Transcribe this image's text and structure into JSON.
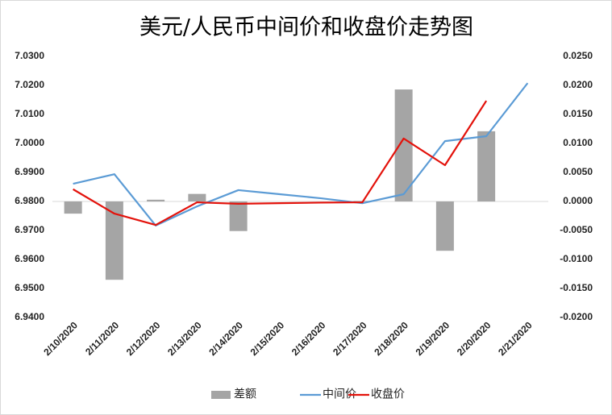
{
  "chart_data": {
    "type": "bar-line",
    "title": "美元/人民币中间价和收盘价走势图",
    "categories": [
      "2/10/2020",
      "2/11/2020",
      "2/12/2020",
      "2/13/2020",
      "2/14/2020",
      "2/15/2020",
      "2/16/2020",
      "2/17/2020",
      "2/18/2020",
      "2/19/2020",
      "2/20/2020",
      "2/21/2020"
    ],
    "series": [
      {
        "name": "差额",
        "type": "bar",
        "axis": "y2",
        "color": "#a5a5a5",
        "values": [
          -0.0021,
          -0.0135,
          0.0003,
          0.0013,
          -0.0051,
          null,
          null,
          0.0001,
          0.0193,
          -0.0085,
          0.0121,
          null
        ]
      },
      {
        "name": "中间价",
        "type": "line",
        "color": "#5b9bd5",
        "values": [
          6.9861,
          6.9894,
          6.9717,
          6.9783,
          6.9839,
          6.9825,
          6.9811,
          6.9794,
          6.9825,
          7.0008,
          7.0025,
          7.0208
        ]
      },
      {
        "name": "收盘价",
        "type": "line",
        "color": "#e3120b",
        "values": [
          6.9842,
          6.9758,
          6.9719,
          6.9797,
          6.9792,
          6.9794,
          6.9796,
          6.9797,
          7.0017,
          6.9925,
          7.0147,
          null
        ]
      }
    ],
    "ylim": [
      6.94,
      7.03
    ],
    "yticks": [
      {
        "value": 6.94,
        "label": "6.9400"
      },
      {
        "value": 6.95,
        "label": "6.9500"
      },
      {
        "value": 6.96,
        "label": "6.9600"
      },
      {
        "value": 6.97,
        "label": "6.9700"
      },
      {
        "value": 6.98,
        "label": "6.9800"
      },
      {
        "value": 6.99,
        "label": "6.9900"
      },
      {
        "value": 7.0,
        "label": "7.0000"
      },
      {
        "value": 7.01,
        "label": "7.0100"
      },
      {
        "value": 7.02,
        "label": "7.0200"
      },
      {
        "value": 7.03,
        "label": "7.0300"
      }
    ],
    "y2lim": [
      -0.02,
      0.025
    ],
    "y2ticks": [
      {
        "value": -0.02,
        "label": "-0.0200"
      },
      {
        "value": -0.015,
        "label": "-0.0150"
      },
      {
        "value": -0.01,
        "label": "-0.0100"
      },
      {
        "value": -0.005,
        "label": "-0.0050"
      },
      {
        "value": 0,
        "label": "0.0000"
      },
      {
        "value": 0.005,
        "label": "0.0050"
      },
      {
        "value": 0.01,
        "label": "0.0100"
      },
      {
        "value": 0.015,
        "label": "0.0150"
      },
      {
        "value": 0.02,
        "label": "0.0200"
      },
      {
        "value": 0.025,
        "label": "0.0250"
      }
    ],
    "grid": false,
    "legend": "bottom"
  }
}
